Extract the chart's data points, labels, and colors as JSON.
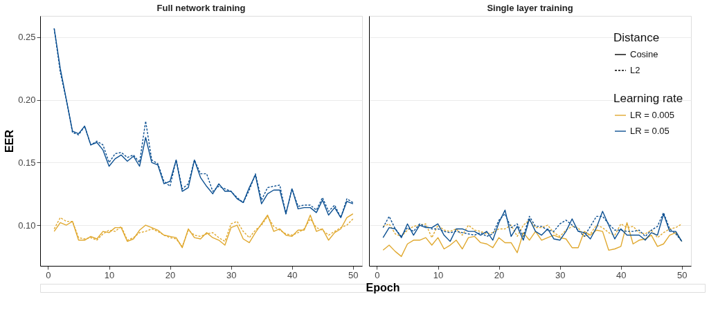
{
  "chart_data": [
    {
      "type": "line",
      "title": "Full network training",
      "ylabel": "EER",
      "xlabel": "Epoch",
      "grid": "y",
      "tick_labels": true,
      "xlim": [
        -1.3,
        51.5
      ],
      "xticks": [
        0,
        10,
        20,
        30,
        40,
        50
      ],
      "ylim": [
        0.0675,
        0.267
      ],
      "yticks": [
        {
          "value": 0.1,
          "label": "0.10"
        },
        {
          "value": 0.15,
          "label": "0.15"
        },
        {
          "value": 0.2,
          "label": "0.20"
        },
        {
          "value": 0.25,
          "label": "0.25"
        }
      ],
      "x": [
        1,
        2,
        3,
        4,
        5,
        6,
        7,
        8,
        9,
        10,
        11,
        12,
        13,
        14,
        15,
        16,
        17,
        18,
        19,
        20,
        21,
        22,
        23,
        24,
        25,
        26,
        27,
        28,
        29,
        30,
        31,
        32,
        33,
        34,
        35,
        36,
        37,
        38,
        39,
        40,
        41,
        42,
        43,
        44,
        45,
        46,
        47,
        48,
        49,
        50
      ],
      "series": [
        {
          "color": "#e0a82e",
          "line_style": "solid",
          "values": [
            0.095,
            0.102,
            0.1,
            0.103,
            0.088,
            0.088,
            0.091,
            0.089,
            0.095,
            0.094,
            0.098,
            0.098,
            0.087,
            0.089,
            0.096,
            0.1,
            0.098,
            0.096,
            0.092,
            0.091,
            0.09,
            0.082,
            0.097,
            0.09,
            0.089,
            0.094,
            0.09,
            0.088,
            0.084,
            0.098,
            0.1,
            0.089,
            0.086,
            0.094,
            0.101,
            0.108,
            0.095,
            0.097,
            0.092,
            0.091,
            0.096,
            0.096,
            0.108,
            0.095,
            0.097,
            0.088,
            0.094,
            0.097,
            0.106,
            0.109
          ]
        },
        {
          "color": "#e0a82e",
          "line_style": "dashed",
          "values": [
            0.097,
            0.106,
            0.103,
            0.103,
            0.09,
            0.089,
            0.09,
            0.088,
            0.093,
            0.096,
            0.095,
            0.099,
            0.088,
            0.09,
            0.094,
            0.095,
            0.097,
            0.095,
            0.092,
            0.09,
            0.089,
            0.083,
            0.096,
            0.092,
            0.091,
            0.093,
            0.094,
            0.09,
            0.087,
            0.101,
            0.103,
            0.095,
            0.09,
            0.096,
            0.1,
            0.107,
            0.099,
            0.096,
            0.093,
            0.092,
            0.094,
            0.097,
            0.105,
            0.098,
            0.096,
            0.092,
            0.095,
            0.098,
            0.1,
            0.105
          ]
        },
        {
          "color": "#0b4f91",
          "line_style": "solid",
          "values": [
            0.257,
            0.225,
            0.2,
            0.175,
            0.173,
            0.179,
            0.164,
            0.166,
            0.16,
            0.147,
            0.153,
            0.156,
            0.151,
            0.155,
            0.147,
            0.17,
            0.15,
            0.148,
            0.133,
            0.135,
            0.152,
            0.127,
            0.13,
            0.152,
            0.138,
            0.131,
            0.125,
            0.133,
            0.127,
            0.127,
            0.121,
            0.118,
            0.13,
            0.14,
            0.117,
            0.125,
            0.128,
            0.128,
            0.109,
            0.129,
            0.113,
            0.114,
            0.114,
            0.11,
            0.12,
            0.108,
            0.114,
            0.106,
            0.119,
            0.117
          ]
        },
        {
          "color": "#0b4f91",
          "line_style": "dashed",
          "values": [
            0.257,
            0.222,
            0.2,
            0.174,
            0.172,
            0.179,
            0.164,
            0.167,
            0.164,
            0.15,
            0.157,
            0.158,
            0.154,
            0.156,
            0.15,
            0.183,
            0.152,
            0.149,
            0.135,
            0.131,
            0.152,
            0.129,
            0.133,
            0.152,
            0.141,
            0.141,
            0.127,
            0.131,
            0.129,
            0.127,
            0.122,
            0.118,
            0.128,
            0.141,
            0.12,
            0.13,
            0.131,
            0.132,
            0.109,
            0.129,
            0.115,
            0.116,
            0.116,
            0.112,
            0.122,
            0.111,
            0.116,
            0.106,
            0.121,
            0.118
          ]
        }
      ]
    },
    {
      "type": "line",
      "title": "Single layer training",
      "grid": "y",
      "tick_labels": "x",
      "legend": "top right",
      "legend_title": "Learning rate",
      "annotations": [
        "Distance",
        "Cosine",
        "L2"
      ],
      "xlim": [
        -1.3,
        51.5
      ],
      "xticks": [
        0,
        10,
        20,
        30,
        40,
        50
      ],
      "ylim": [
        0.0675,
        0.267
      ],
      "yticks": [
        {
          "value": 0.1,
          "label": null
        },
        {
          "value": 0.15,
          "label": null
        },
        {
          "value": 0.2,
          "label": null
        },
        {
          "value": 0.25,
          "label": null
        }
      ],
      "x": [
        1,
        2,
        3,
        4,
        5,
        6,
        7,
        8,
        9,
        10,
        11,
        12,
        13,
        14,
        15,
        16,
        17,
        18,
        19,
        20,
        21,
        22,
        23,
        24,
        25,
        26,
        27,
        28,
        29,
        30,
        31,
        32,
        33,
        34,
        35,
        36,
        37,
        38,
        39,
        40,
        41,
        42,
        43,
        44,
        45,
        46,
        47,
        48,
        49,
        50
      ],
      "series": [
        {
          "name": "LR = 0.005",
          "color": "#e0a82e",
          "line_style": "solid",
          "values": [
            0.08,
            0.084,
            0.079,
            0.075,
            0.085,
            0.088,
            0.088,
            0.09,
            0.084,
            0.09,
            0.081,
            0.084,
            0.088,
            0.081,
            0.09,
            0.091,
            0.086,
            0.085,
            0.082,
            0.09,
            0.086,
            0.086,
            0.078,
            0.094,
            0.088,
            0.095,
            0.088,
            0.09,
            0.092,
            0.09,
            0.089,
            0.082,
            0.082,
            0.095,
            0.092,
            0.096,
            0.095,
            0.08,
            0.081,
            0.083,
            0.102,
            0.085,
            0.088,
            0.089,
            0.092,
            0.083,
            0.085,
            0.092,
            0.094,
            0.087
          ]
        },
        {
          "color": "#e0a82e",
          "line_style": "dashed",
          "values": [
            0.099,
            0.101,
            0.093,
            0.091,
            0.096,
            0.099,
            0.1,
            0.101,
            0.09,
            0.1,
            0.096,
            0.095,
            0.097,
            0.092,
            0.1,
            0.096,
            0.095,
            0.093,
            0.094,
            0.097,
            0.097,
            0.1,
            0.091,
            0.1,
            0.104,
            0.098,
            0.098,
            0.1,
            0.094,
            0.091,
            0.096,
            0.099,
            0.098,
            0.091,
            0.093,
            0.1,
            0.098,
            0.094,
            0.092,
            0.101,
            0.098,
            0.099,
            0.094,
            0.093,
            0.096,
            0.09,
            0.094,
            0.097,
            0.098,
            0.101
          ]
        },
        {
          "name": "LR = 0.05",
          "color": "#0b4f91",
          "line_style": "solid",
          "values": [
            0.09,
            0.098,
            0.097,
            0.09,
            0.101,
            0.092,
            0.1,
            0.098,
            0.098,
            0.101,
            0.092,
            0.087,
            0.097,
            0.097,
            0.095,
            0.095,
            0.092,
            0.095,
            0.088,
            0.102,
            0.112,
            0.091,
            0.099,
            0.088,
            0.105,
            0.095,
            0.092,
            0.097,
            0.089,
            0.088,
            0.095,
            0.105,
            0.095,
            0.094,
            0.089,
            0.098,
            0.111,
            0.1,
            0.089,
            0.097,
            0.092,
            0.092,
            0.092,
            0.088,
            0.094,
            0.092,
            0.109,
            0.095,
            0.095,
            0.087
          ]
        },
        {
          "color": "#0b4f91",
          "line_style": "dashed",
          "values": [
            0.098,
            0.107,
            0.097,
            0.091,
            0.098,
            0.095,
            0.101,
            0.099,
            0.097,
            0.097,
            0.095,
            0.094,
            0.095,
            0.094,
            0.093,
            0.092,
            0.094,
            0.091,
            0.093,
            0.104,
            0.109,
            0.098,
            0.101,
            0.091,
            0.107,
            0.099,
            0.099,
            0.096,
            0.095,
            0.101,
            0.104,
            0.1,
            0.096,
            0.091,
            0.099,
            0.107,
            0.107,
            0.101,
            0.096,
            0.096,
            0.095,
            0.095,
            0.096,
            0.091,
            0.096,
            0.099,
            0.11,
            0.097,
            0.093,
            0.087
          ]
        }
      ]
    }
  ]
}
